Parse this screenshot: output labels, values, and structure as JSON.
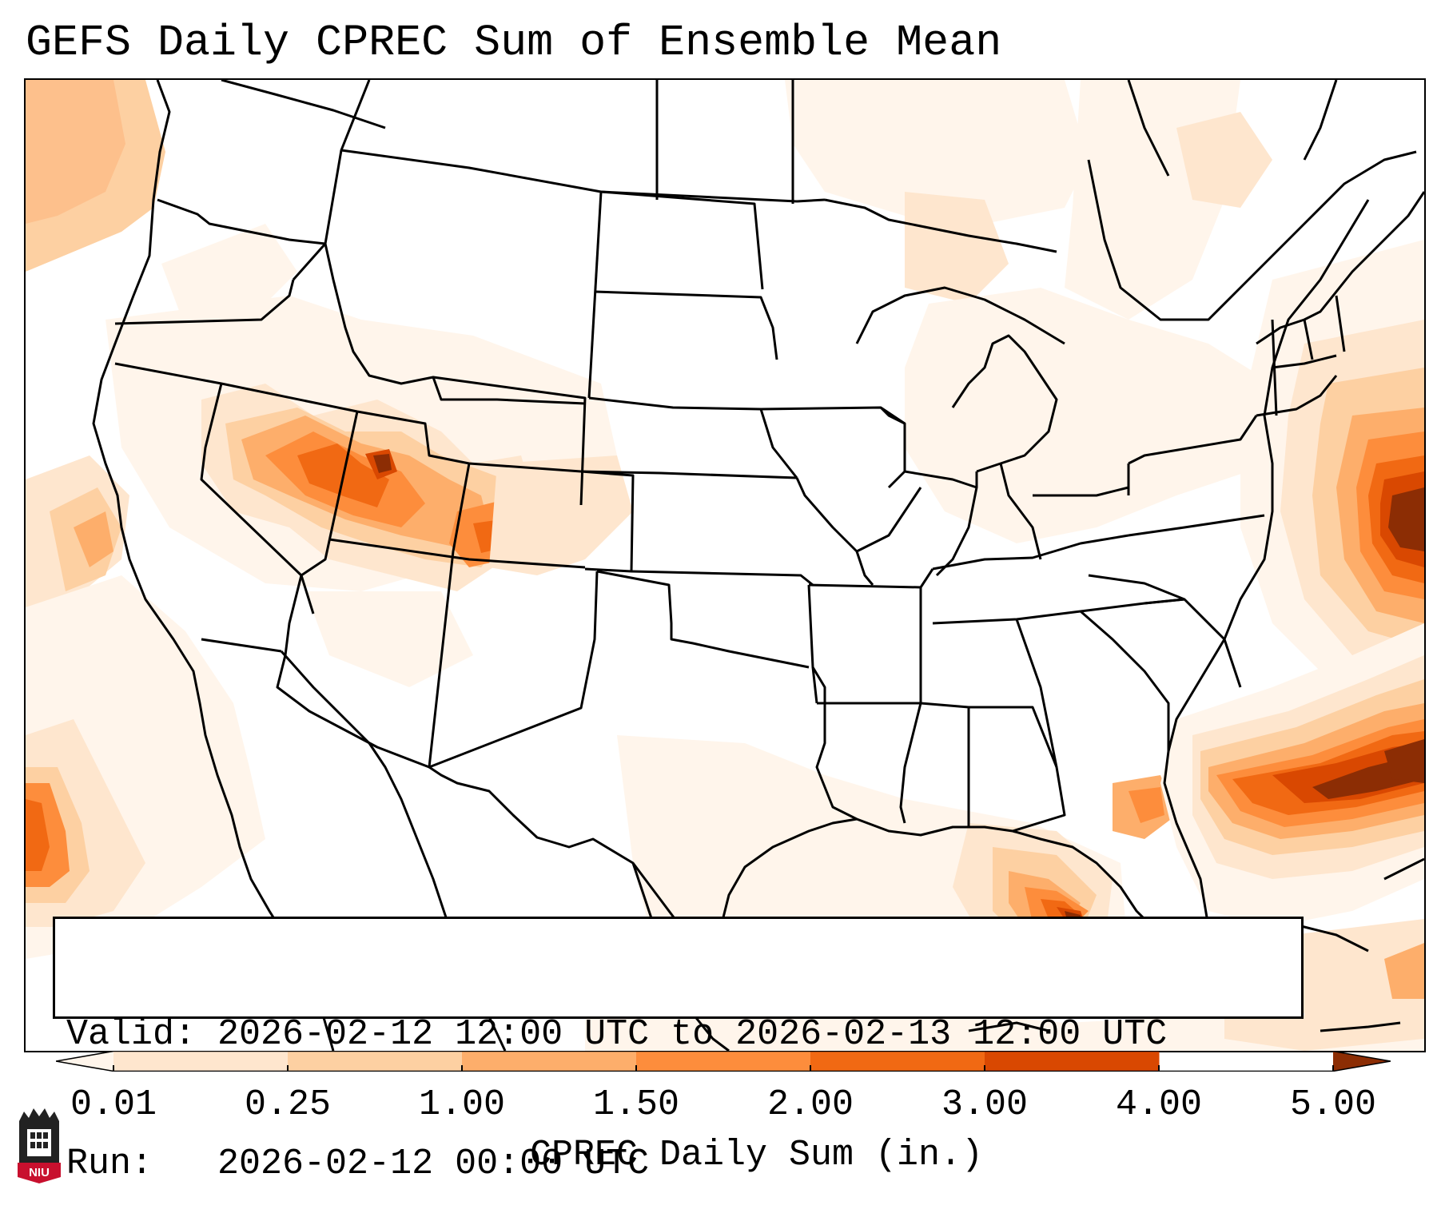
{
  "title": "GEFS Daily CPREC Sum of Ensemble Mean",
  "info": {
    "valid_line": "Valid: 2026-02-12 12:00 UTC to 2026-02-13 12:00 UTC",
    "run_line": "Run:   2026-02-12 00:00 UTC"
  },
  "colorbar": {
    "label": "CPREC Daily Sum (in.)",
    "ticks": [
      "0.01",
      "0.25",
      "1.00",
      "1.50",
      "2.00",
      "3.00",
      "4.00",
      "5.00"
    ],
    "colors": [
      "#fff5eb",
      "#fee6ce",
      "#fdd0a2",
      "#fdae6b",
      "#fd8d3c",
      "#f16913",
      "#d94801",
      "#8c2d04"
    ]
  },
  "logo": {
    "text": "NIU",
    "color": "#c8102e"
  },
  "map": {
    "region": "Contiguous United States",
    "projection": "Lambert conformal",
    "precip_areas": [
      {
        "name": "great-basin-utah",
        "max_level": 8
      },
      {
        "name": "colorado-rockies",
        "max_level": 5
      },
      {
        "name": "off-northeast-coast",
        "max_level": 8
      },
      {
        "name": "off-southeast-coast",
        "max_level": 8
      },
      {
        "name": "gulf-of-mexico",
        "max_level": 8
      },
      {
        "name": "off-california-coast",
        "max_level": 4
      },
      {
        "name": "off-baja-coast",
        "max_level": 6
      }
    ]
  }
}
